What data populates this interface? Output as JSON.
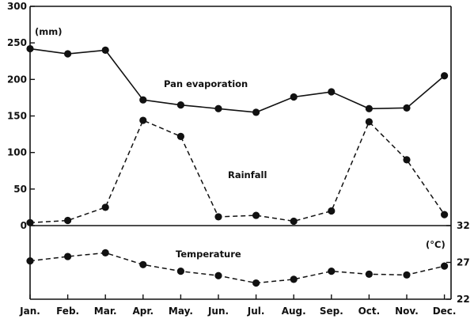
{
  "chart_data": [
    {
      "type": "line",
      "panel": "upper",
      "categories": [
        "Jan.",
        "Feb.",
        "Mar.",
        "Apr.",
        "May.",
        "Jun.",
        "Jul.",
        "Aug.",
        "Sep.",
        "Oct.",
        "Nov.",
        "Dec."
      ],
      "unit_label": "(mm)",
      "ylim": [
        0,
        300
      ],
      "yticks": [
        0,
        50,
        100,
        150,
        200,
        250,
        300
      ],
      "grid": false,
      "series": [
        {
          "name": "Pan evaporation",
          "style": "solid",
          "values": [
            242,
            235,
            240,
            172,
            165,
            160,
            155,
            176,
            183,
            160,
            161,
            205
          ]
        },
        {
          "name": "Rainfall",
          "style": "dashed",
          "values": [
            4,
            7,
            25,
            144,
            122,
            12,
            14,
            6,
            20,
            142,
            90,
            15
          ]
        }
      ]
    },
    {
      "type": "line",
      "panel": "lower",
      "categories": [
        "Jan.",
        "Feb.",
        "Mar.",
        "Apr.",
        "May.",
        "Jun.",
        "Jul.",
        "Aug.",
        "Sep.",
        "Oct.",
        "Nov.",
        "Dec."
      ],
      "unit_label": "(°C)",
      "ylim": [
        22,
        32
      ],
      "yticks": [
        22,
        27,
        32
      ],
      "grid": false,
      "series": [
        {
          "name": "Temperature",
          "style": "dashed",
          "values": [
            27.2,
            27.8,
            28.3,
            26.7,
            25.8,
            25.2,
            24.2,
            24.7,
            25.8,
            25.4,
            25.3,
            26.5
          ]
        }
      ]
    }
  ]
}
